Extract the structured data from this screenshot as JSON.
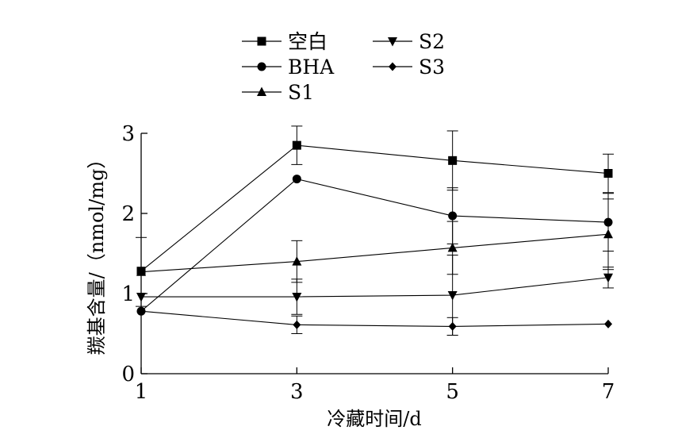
{
  "chart_data": {
    "type": "line",
    "xlabel": "冷藏时间/d",
    "ylabel": "羰基含量/（nmol/mg）",
    "x": [
      1,
      3,
      5,
      7
    ],
    "xticks": [
      "1",
      "3",
      "5",
      "7"
    ],
    "yticks": [
      "0",
      "1",
      "2",
      "3"
    ],
    "xlim": [
      1,
      7
    ],
    "ylim": [
      0,
      3
    ],
    "grid": false,
    "legend_position": "top-center",
    "series": [
      {
        "name": "空白",
        "marker": "square",
        "values": [
          1.28,
          2.85,
          2.66,
          2.5
        ],
        "errors": [
          0.02,
          0.24,
          0.37,
          0.24
        ]
      },
      {
        "name": "BHA",
        "marker": "circle",
        "values": [
          0.78,
          2.43,
          1.97,
          1.89
        ],
        "errors": [
          0.02,
          0.03,
          0.35,
          0.36
        ]
      },
      {
        "name": "S1",
        "marker": "triangle-up",
        "values": [
          1.27,
          1.4,
          1.57,
          1.74
        ],
        "errors": [
          0.43,
          0.26,
          0.33,
          0.44
        ]
      },
      {
        "name": "S2",
        "marker": "triangle-down",
        "values": [
          0.96,
          0.96,
          0.98,
          1.2
        ],
        "errors": [
          0.02,
          0.22,
          0.5,
          0.13
        ]
      },
      {
        "name": "S3",
        "marker": "diamond",
        "values": [
          0.78,
          0.61,
          0.59,
          0.62
        ],
        "errors": [
          0.02,
          0.11,
          0.11,
          0.03
        ]
      }
    ]
  }
}
